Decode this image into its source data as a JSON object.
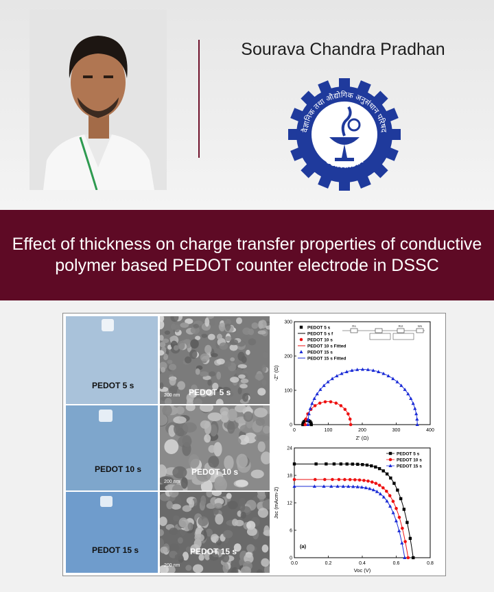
{
  "header": {
    "author_name": "Sourava Chandra Pradhan",
    "logo": {
      "text": "CSIR INDIA",
      "hindi_text": "वैज्ञानिक तथा औद्योगिक अनुसंधान परिषद",
      "colors": {
        "primary": "#1f3a9c",
        "white": "#ffffff"
      }
    }
  },
  "banner": {
    "title": "Effect of thickness on charge transfer properties of conductive polymer based PEDOT counter electrode in DSSC",
    "color": "#5e0a25"
  },
  "figure": {
    "photo_labels": [
      "PEDOT 5 s",
      "PEDOT 10 s",
      "PEDOT 15 s"
    ],
    "sem_labels": [
      "PEDOT 5 s",
      "PEDOT 10 s",
      "PEDOT 15 s"
    ],
    "scale_bar": "200 nm",
    "nyquist": {
      "xlabel": "Z' (Ω)",
      "ylabel": "-Z'' (Ω)",
      "xticks": [
        "0",
        "100",
        "200",
        "300",
        "400"
      ],
      "yticks": [
        "0",
        "100",
        "200",
        "300"
      ],
      "legend": [
        "PEDOT 5 s",
        "PEDOT 5 s f",
        "PEDOT 10 s",
        "PEDOT 10 s Fitted",
        "PEDOT 15 s",
        "PEDOT 15 s Fitted"
      ],
      "circuit_labels": [
        "Rs",
        "Rct",
        "Ws"
      ]
    },
    "jv": {
      "panel_label": "(a)",
      "xlabel": "Voc (V)",
      "ylabel": "Jsc (mAcm-2)",
      "xticks": [
        "0.0",
        "0.2",
        "0.4",
        "0.6",
        "0.8"
      ],
      "yticks": [
        "0",
        "6",
        "12",
        "18",
        "24"
      ],
      "legend": [
        "PEDOT 5 s",
        "PEDOT 10 s",
        "PEDOT 15 s"
      ]
    }
  },
  "chart_data": [
    {
      "type": "scatter",
      "xlabel": "Z' (Ω)",
      "ylabel": "-Z'' (Ω)",
      "xlim": [
        0,
        400
      ],
      "ylim": [
        0,
        300
      ],
      "legend_position": "top-left",
      "grid": false,
      "series": [
        {
          "name": "PEDOT 5 s",
          "marker": "square",
          "color": "#000000",
          "x0": 25,
          "x1": 50
        },
        {
          "name": "PEDOT 5 s f",
          "marker": "line",
          "color": "#000000",
          "x0": 25,
          "x1": 50
        },
        {
          "name": "PEDOT 10 s",
          "marker": "circle",
          "color": "#ee1111",
          "x0": 32,
          "x1": 166
        },
        {
          "name": "PEDOT 10 s Fitted",
          "marker": "line",
          "color": "#ee1111",
          "x0": 32,
          "x1": 166
        },
        {
          "name": "PEDOT 15 s",
          "marker": "triangle",
          "color": "#1a2bd6",
          "x0": 40,
          "x1": 362
        },
        {
          "name": "PEDOT 15 s Fitted",
          "marker": "line",
          "color": "#1a2bd6",
          "x0": 40,
          "x1": 362
        }
      ]
    },
    {
      "type": "line",
      "xlabel": "Voc (V)",
      "ylabel": "Jsc (mAcm-2)",
      "xlim": [
        0,
        0.8
      ],
      "ylim": [
        0,
        24
      ],
      "legend_position": "top-right",
      "grid": false,
      "series": [
        {
          "name": "PEDOT 5 s",
          "marker": "square",
          "color": "#000000",
          "jsc": 20.5,
          "voc": 0.7
        },
        {
          "name": "PEDOT 10 s",
          "marker": "circle",
          "color": "#ee1111",
          "jsc": 17.1,
          "voc": 0.67
        },
        {
          "name": "PEDOT 15 s",
          "marker": "triangle",
          "color": "#1a2bd6",
          "jsc": 15.6,
          "voc": 0.65
        }
      ]
    }
  ]
}
